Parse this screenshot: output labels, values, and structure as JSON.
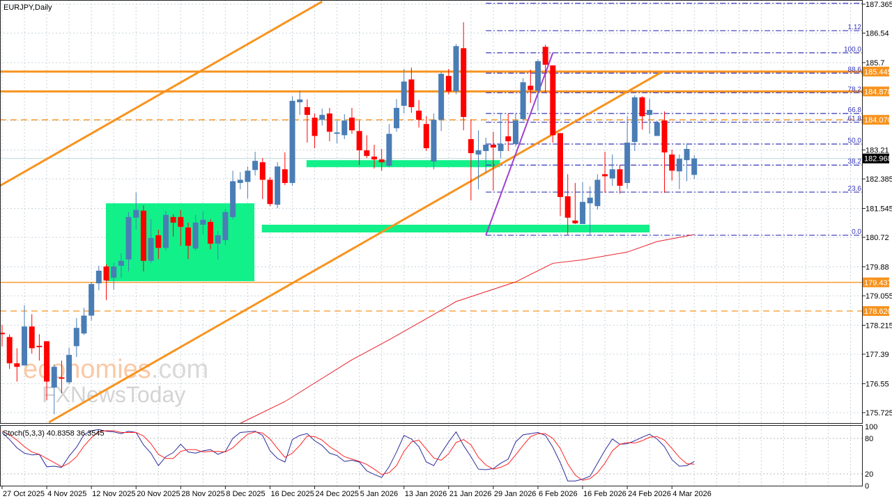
{
  "chart_data": [
    {
      "type": "candlestick",
      "title": "EURJPY,Daily",
      "price_ticks": [
        187.365,
        186.54,
        185.7,
        183.21,
        182.385,
        181.545,
        180.72,
        179.88,
        179.055,
        178.215,
        177.39,
        176.55,
        175.725
      ],
      "grid_levels": [
        187.365,
        186.54,
        185.7,
        184.87,
        184.045,
        183.21,
        182.385,
        181.545,
        180.72,
        179.88,
        179.055,
        178.215,
        177.39,
        176.55,
        175.725
      ],
      "ylim": [
        175.6,
        187.48
      ],
      "x_ticks": [
        {
          "index": 0,
          "label": "27 Oct 2025"
        },
        {
          "index": 6,
          "label": "4 Nov 2025"
        },
        {
          "index": 12,
          "label": "12 Nov 2025"
        },
        {
          "index": 18,
          "label": "20 Nov 2025"
        },
        {
          "index": 24,
          "label": "28 Nov 2025"
        },
        {
          "index": 30,
          "label": "8 Dec 2025"
        },
        {
          "index": 36,
          "label": "16 Dec 2025"
        },
        {
          "index": 42,
          "label": "24 Dec 2025"
        },
        {
          "index": 48,
          "label": "5 Jan 2026"
        },
        {
          "index": 54,
          "label": "13 Jan 2026"
        },
        {
          "index": 60,
          "label": "21 Jan 2026"
        },
        {
          "index": 66,
          "label": "29 Jan 2026"
        },
        {
          "index": 72,
          "label": "6 Feb 2026"
        },
        {
          "index": 78,
          "label": "16 Feb 2026"
        },
        {
          "index": 84,
          "label": "24 Feb 2026"
        },
        {
          "index": 90,
          "label": "4 Mar 2026"
        }
      ],
      "ohlc_columns": [
        "open",
        "high",
        "low",
        "close"
      ],
      "candles": [
        [
          178.0,
          178.22,
          177.61,
          177.96
        ],
        [
          177.88,
          177.96,
          176.97,
          177.13
        ],
        [
          177.13,
          177.56,
          176.61,
          177.03
        ],
        [
          177.07,
          178.79,
          177.07,
          178.18
        ],
        [
          178.18,
          178.53,
          177.41,
          177.56
        ],
        [
          177.63,
          177.96,
          177.21,
          177.6
        ],
        [
          177.76,
          177.76,
          176.08,
          176.61
        ],
        [
          176.44,
          177.1,
          175.68,
          177.03
        ],
        [
          176.73,
          177.21,
          176.28,
          176.69
        ],
        [
          176.59,
          177.58,
          176.53,
          177.37
        ],
        [
          177.62,
          178.42,
          177.31,
          178.14
        ],
        [
          177.98,
          178.71,
          177.94,
          178.49
        ],
        [
          178.49,
          179.45,
          178.35,
          179.39
        ],
        [
          179.41,
          179.91,
          179.21,
          179.77
        ],
        [
          179.89,
          179.95,
          178.93,
          179.49
        ],
        [
          179.57,
          180.0,
          179.23,
          179.89
        ],
        [
          179.91,
          180.27,
          179.57,
          180.05
        ],
        [
          180.09,
          181.44,
          179.75,
          181.3
        ],
        [
          181.28,
          182.0,
          180.94,
          181.5
        ],
        [
          181.48,
          181.63,
          179.75,
          180.05
        ],
        [
          180.05,
          181.24,
          179.99,
          180.7
        ],
        [
          180.78,
          180.94,
          180.1,
          180.42
        ],
        [
          180.42,
          181.48,
          180.34,
          181.36
        ],
        [
          181.3,
          181.38,
          180.74,
          181.14
        ],
        [
          181.3,
          181.5,
          180.48,
          181.02
        ],
        [
          181.0,
          181.14,
          180.1,
          180.48
        ],
        [
          180.4,
          181.36,
          180.34,
          181.14
        ],
        [
          181.08,
          181.46,
          180.8,
          181.22
        ],
        [
          181.16,
          181.24,
          180.38,
          180.54
        ],
        [
          180.54,
          180.9,
          180.09,
          180.78
        ],
        [
          180.64,
          181.53,
          180.5,
          181.44
        ],
        [
          181.3,
          182.62,
          181.24,
          182.32
        ],
        [
          182.27,
          182.58,
          182.09,
          182.36
        ],
        [
          182.3,
          182.74,
          181.83,
          182.62
        ],
        [
          182.64,
          183.16,
          182.48,
          182.9
        ],
        [
          182.86,
          182.98,
          181.81,
          182.36
        ],
        [
          182.36,
          182.44,
          181.61,
          181.67
        ],
        [
          181.65,
          182.86,
          181.55,
          182.74
        ],
        [
          182.66,
          183.14,
          182.21,
          182.27
        ],
        [
          182.27,
          184.74,
          182.19,
          184.61
        ],
        [
          184.57,
          184.9,
          184.21,
          184.65
        ],
        [
          184.43,
          184.65,
          183.42,
          184.21
        ],
        [
          184.13,
          184.25,
          183.26,
          183.61
        ],
        [
          184.07,
          184.39,
          183.91,
          184.21
        ],
        [
          184.25,
          184.41,
          183.46,
          183.73
        ],
        [
          183.67,
          184.05,
          183.4,
          183.71
        ],
        [
          183.63,
          184.23,
          183.52,
          184.05
        ],
        [
          184.13,
          184.41,
          183.67,
          183.77
        ],
        [
          183.75,
          184.05,
          182.78,
          183.2
        ],
        [
          183.2,
          183.63,
          182.98,
          183.04
        ],
        [
          183.02,
          183.36,
          182.68,
          182.94
        ],
        [
          182.94,
          183.24,
          182.62,
          182.86
        ],
        [
          182.76,
          183.95,
          182.72,
          183.67
        ],
        [
          183.83,
          184.66,
          183.73,
          184.41
        ],
        [
          184.47,
          185.52,
          184.25,
          185.16
        ],
        [
          185.22,
          185.56,
          184.27,
          184.43
        ],
        [
          184.33,
          184.63,
          183.85,
          184.07
        ],
        [
          183.95,
          184.17,
          183.18,
          183.26
        ],
        [
          182.88,
          184.25,
          182.66,
          184.07
        ],
        [
          184.07,
          185.44,
          183.75,
          185.38
        ],
        [
          185.32,
          185.52,
          184.8,
          184.88
        ],
        [
          184.88,
          186.23,
          184.8,
          186.17
        ],
        [
          186.11,
          186.85,
          183.77,
          184.15
        ],
        [
          183.52,
          184.07,
          181.77,
          183.12
        ],
        [
          183.08,
          183.77,
          182.09,
          183.2
        ],
        [
          183.18,
          183.56,
          182.56,
          183.36
        ],
        [
          183.36,
          183.73,
          182.05,
          183.28
        ],
        [
          183.18,
          184.25,
          182.98,
          183.38
        ],
        [
          183.6,
          184.25,
          183.18,
          183.46
        ],
        [
          183.38,
          184.25,
          183.32,
          184.05
        ],
        [
          184.09,
          185.26,
          184.05,
          185.14
        ],
        [
          185.04,
          185.5,
          184.55,
          184.92
        ],
        [
          184.9,
          185.8,
          184.33,
          185.74
        ],
        [
          186.15,
          186.21,
          184.86,
          185.64
        ],
        [
          185.62,
          185.62,
          183.42,
          183.63
        ],
        [
          183.69,
          183.69,
          181.33,
          181.87
        ],
        [
          181.89,
          182.52,
          180.8,
          181.28
        ],
        [
          181.2,
          182.27,
          181.1,
          181.12
        ],
        [
          181.1,
          182.29,
          181.1,
          181.73
        ],
        [
          181.69,
          182.17,
          180.8,
          181.85
        ],
        [
          181.61,
          182.52,
          181.51,
          182.36
        ],
        [
          182.52,
          183.16,
          181.99,
          182.46
        ],
        [
          182.4,
          183.08,
          182.19,
          182.66
        ],
        [
          182.66,
          182.78,
          181.97,
          182.19
        ],
        [
          182.27,
          184.17,
          182.11,
          183.42
        ],
        [
          183.44,
          184.77,
          183.18,
          184.71
        ],
        [
          184.71,
          184.74,
          183.79,
          184.17
        ],
        [
          184.21,
          184.67,
          183.67,
          184.35
        ],
        [
          183.61,
          184.05,
          183.61,
          183.99
        ],
        [
          184.05,
          184.31,
          181.99,
          183.14
        ],
        [
          183.08,
          183.22,
          182.34,
          182.62
        ],
        [
          182.6,
          183.08,
          182.09,
          182.96
        ],
        [
          182.92,
          183.4,
          182.32,
          183.24
        ],
        [
          182.5,
          183.06,
          182.38,
          182.968
        ]
      ],
      "current_price": {
        "value": 182.968,
        "label": "182.968"
      },
      "colors": {
        "bull": "#4a7db5",
        "bear": "#ff0000",
        "orange": "#f7931e",
        "zone": "#12f08a",
        "fib": "#3535b8",
        "ma": "#e8202a",
        "trend_purple": "#a040d0",
        "current_tag": "#000000"
      },
      "horizontal_levels": [
        {
          "price": 185.445,
          "label": "185.445",
          "style": "solid-thick"
        },
        {
          "price": 184.878,
          "label": "184.878",
          "style": "solid-thick"
        },
        {
          "price": 184.07,
          "label": "184.070",
          "style": "dashed"
        },
        {
          "price": 179.437,
          "label": "179.437",
          "style": "solid-thin"
        },
        {
          "price": 178.62,
          "label": "178.620",
          "style": "dashed"
        }
      ],
      "trendlines": [
        {
          "color": "orange",
          "points": [
            [
              -0.28,
              182.19
            ],
            [
              43,
              187.44
            ]
          ]
        },
        {
          "color": "orange",
          "points": [
            [
              6.3,
              175.45
            ],
            [
              88.7,
              185.44
            ]
          ]
        },
        {
          "color": "purple",
          "points": [
            [
              65,
              180.78
            ],
            [
              74,
              185.98
            ]
          ]
        }
      ],
      "zones": [
        {
          "from_index": 13.95,
          "to_index": 33.9,
          "top": 181.69,
          "bottom": 179.47
        },
        {
          "from_index": 40.9,
          "to_index": 66.9,
          "top": 182.92,
          "bottom": 182.72
        },
        {
          "from_index": 34.9,
          "to_index": 87,
          "top": 181.08,
          "bottom": 180.86
        }
      ],
      "fibonacci": {
        "start_index": 65,
        "levels": [
          {
            "label": "",
            "price": 187.39
          },
          {
            "label": "1.12",
            "price": 186.61
          },
          {
            "label": "100.0",
            "price": 185.98
          },
          {
            "label": "88.6",
            "price": 185.4
          },
          {
            "label": "78.2",
            "price": 184.84
          },
          {
            "label": "66.8",
            "price": 184.25
          },
          {
            "label": "61.8",
            "price": 184.0
          },
          {
            "label": "50.0",
            "price": 183.38
          },
          {
            "label": "38.2",
            "price": 182.78
          },
          {
            "label": "23.6",
            "price": 182.01
          },
          {
            "label": "0.0",
            "price": 180.78
          }
        ]
      },
      "moving_average": [
        [
          32,
          175.42
        ],
        [
          38,
          176.04
        ],
        [
          47,
          177.23
        ],
        [
          52,
          177.8
        ],
        [
          57,
          178.4
        ],
        [
          61,
          178.89
        ],
        [
          69,
          179.45
        ],
        [
          74,
          179.98
        ],
        [
          78,
          180.08
        ],
        [
          84,
          180.3
        ],
        [
          88,
          180.6
        ],
        [
          93,
          180.8
        ]
      ],
      "watermark": {
        "part1": "economies",
        "part2": ".com",
        "line2": "FXNewsToday"
      }
    },
    {
      "type": "line",
      "title": "Stoch(5,3,3) 40.8358 36.3545",
      "ylim": [
        0,
        100
      ],
      "levels": [
        80,
        20
      ],
      "y_ticks": [
        "100",
        "80",
        "20",
        "0"
      ],
      "series": [
        {
          "key": "k",
          "color": "#2b2b9a",
          "values": [
            90,
            78,
            64,
            55,
            52,
            53,
            32,
            33,
            31,
            50,
            65,
            86,
            93,
            95,
            92,
            91,
            88,
            92,
            90,
            69,
            55,
            34,
            49,
            56,
            70,
            57,
            55,
            59,
            61,
            53,
            58,
            80,
            90,
            91,
            92,
            85,
            59,
            46,
            40,
            78,
            85,
            88,
            76,
            68,
            55,
            51,
            41,
            43,
            40,
            25,
            19,
            14,
            32,
            57,
            85,
            79,
            66,
            40,
            34,
            55,
            74,
            91,
            68,
            49,
            28,
            27,
            29,
            38,
            45,
            74,
            86,
            88,
            90,
            85,
            65,
            39,
            8,
            8,
            11,
            16,
            38,
            60,
            79,
            70,
            71,
            76,
            82,
            87,
            79,
            66,
            44,
            33,
            34,
            40.8358
          ]
        },
        {
          "key": "d",
          "color": "#ff2020",
          "values": [
            92,
            86,
            77,
            66,
            57,
            53,
            46,
            39,
            32,
            38,
            49,
            67,
            81,
            91,
            93,
            93,
            90,
            90,
            90,
            84,
            71,
            53,
            46,
            46,
            58,
            61,
            61,
            57,
            58,
            58,
            57,
            64,
            76,
            87,
            91,
            89,
            79,
            63,
            48,
            55,
            68,
            84,
            83,
            77,
            66,
            58,
            49,
            45,
            41,
            36,
            28,
            19,
            22,
            34,
            58,
            74,
            77,
            62,
            47,
            43,
            54,
            73,
            78,
            69,
            48,
            35,
            28,
            31,
            37,
            52,
            68,
            83,
            88,
            88,
            80,
            63,
            37,
            18,
            9,
            12,
            22,
            38,
            59,
            70,
            73,
            72,
            76,
            82,
            83,
            77,
            63,
            48,
            37,
            36.3545
          ]
        }
      ]
    }
  ]
}
